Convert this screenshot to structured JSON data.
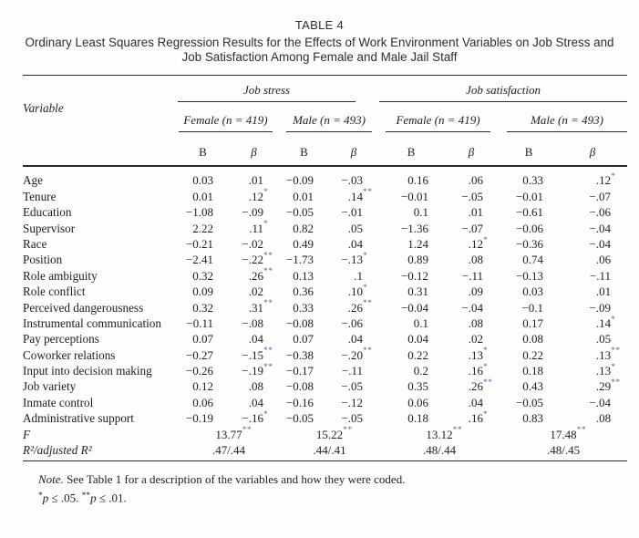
{
  "title": {
    "table_number": "TABLE 4",
    "line1": "Ordinary Least Squares Regression Results for the Effects of Work Environment Variables on Job Stress and",
    "line2": "Job Satisfaction Among Female and Male Jail Staff"
  },
  "table": {
    "variable_header": "Variable",
    "groups": [
      {
        "label": "Job stress"
      },
      {
        "label": "Job satisfaction"
      }
    ],
    "subgroups": [
      {
        "label": "Female (n = 419)"
      },
      {
        "label": "Male (n = 493)"
      },
      {
        "label": "Female (n = 419)"
      },
      {
        "label": "Male (n = 493)"
      }
    ],
    "col_headers": [
      "B",
      "β",
      "B",
      "β",
      "B",
      "β",
      "B",
      "β"
    ],
    "rows": [
      {
        "variable": "Age",
        "values": [
          "0.03",
          ".01",
          "−0.09",
          "−.03",
          "0.16",
          ".06",
          "0.33",
          ".12*"
        ]
      },
      {
        "variable": "Tenure",
        "values": [
          "0.01",
          ".12*",
          "0.01",
          ".14**",
          "−0.01",
          "−.05",
          "−0.01",
          "−.07"
        ]
      },
      {
        "variable": "Education",
        "values": [
          "−1.08",
          "−.09",
          "−0.05",
          "−.01",
          "0.1",
          ".01",
          "−0.61",
          "−.06"
        ]
      },
      {
        "variable": "Supervisor",
        "values": [
          "2.22",
          ".11*",
          "0.82",
          ".05",
          "−1.36",
          "−.07",
          "−0.06",
          "−.04"
        ]
      },
      {
        "variable": "Race",
        "values": [
          "−0.21",
          "−.02",
          "0.49",
          ".04",
          "1.24",
          ".12*",
          "−0.36",
          "−.04"
        ]
      },
      {
        "variable": "Position",
        "values": [
          "−2.41",
          "−.22**",
          "−1.73",
          "−.13*",
          "0.89",
          ".08",
          "0.74",
          ".06"
        ]
      },
      {
        "variable": "Role ambiguity",
        "values": [
          "0.32",
          ".26**",
          "0.13",
          ".1",
          "−0.12",
          "−.11",
          "−0.13",
          "−.11"
        ]
      },
      {
        "variable": "Role conflict",
        "values": [
          "0.09",
          ".02",
          "0.36",
          ".10*",
          "0.31",
          ".09",
          "0.03",
          ".01"
        ]
      },
      {
        "variable": "Perceived dangerousness",
        "values": [
          "0.32",
          ".31**",
          "0.33",
          ".26**",
          "−0.04",
          "−.04",
          "−0.1",
          "−.09"
        ]
      },
      {
        "variable": "Instrumental communication",
        "values": [
          "−0.11",
          "−.08",
          "−0.08",
          "−.06",
          "0.1",
          ".08",
          "0.17",
          ".14*"
        ]
      },
      {
        "variable": "Pay perceptions",
        "values": [
          "0.07",
          ".04",
          "0.07",
          ".04",
          "0.04",
          ".02",
          "0.08",
          ".05"
        ]
      },
      {
        "variable": "Coworker relations",
        "values": [
          "−0.27",
          "−.15**",
          "−0.38",
          "−.20**",
          "0.22",
          ".13*",
          "0.22",
          ".13**"
        ]
      },
      {
        "variable": "Input into decision making",
        "values": [
          "−0.26",
          "−.19**",
          "−0.17",
          "−.11",
          "0.2",
          ".16*",
          "0.18",
          ".13*"
        ]
      },
      {
        "variable": "Job variety",
        "values": [
          "0.12",
          ".08",
          "−0.08",
          "−.05",
          "0.35",
          ".26**",
          "0.43",
          ".29**"
        ]
      },
      {
        "variable": "Inmate control",
        "values": [
          "0.06",
          ".04",
          "−0.16",
          "−.12",
          "0.06",
          ".04",
          "−0.05",
          "−.04"
        ]
      },
      {
        "variable": "Administrative support",
        "values": [
          "−0.19",
          "−.16*",
          "−0.05",
          "−.05",
          "0.18",
          ".16*",
          "0.83",
          ".08"
        ]
      }
    ],
    "summary_rows": [
      {
        "variable": "F",
        "italic": true,
        "values": [
          "13.77**",
          "15.22**",
          "13.12**",
          "17.48**"
        ]
      },
      {
        "variable": "R²/adjusted R²",
        "italic": true,
        "values": [
          ".47/.44",
          ".44/.41",
          ".48/.44",
          ".48/.45"
        ]
      }
    ]
  },
  "notes": {
    "note_label": "Note.",
    "note_text": " See Table 1 for a description of the variables and how they were coded.",
    "sig": [
      {
        "stars": "*",
        "p": "p",
        "rest": " ≤ .05. "
      },
      {
        "stars": "**",
        "p": "p",
        "rest": " ≤ .01."
      }
    ]
  },
  "colors": {
    "text": "#1f1f1f",
    "rule": "#2b2b2b",
    "star_mark": "#5a67a3",
    "background": "#fdfdfd"
  }
}
